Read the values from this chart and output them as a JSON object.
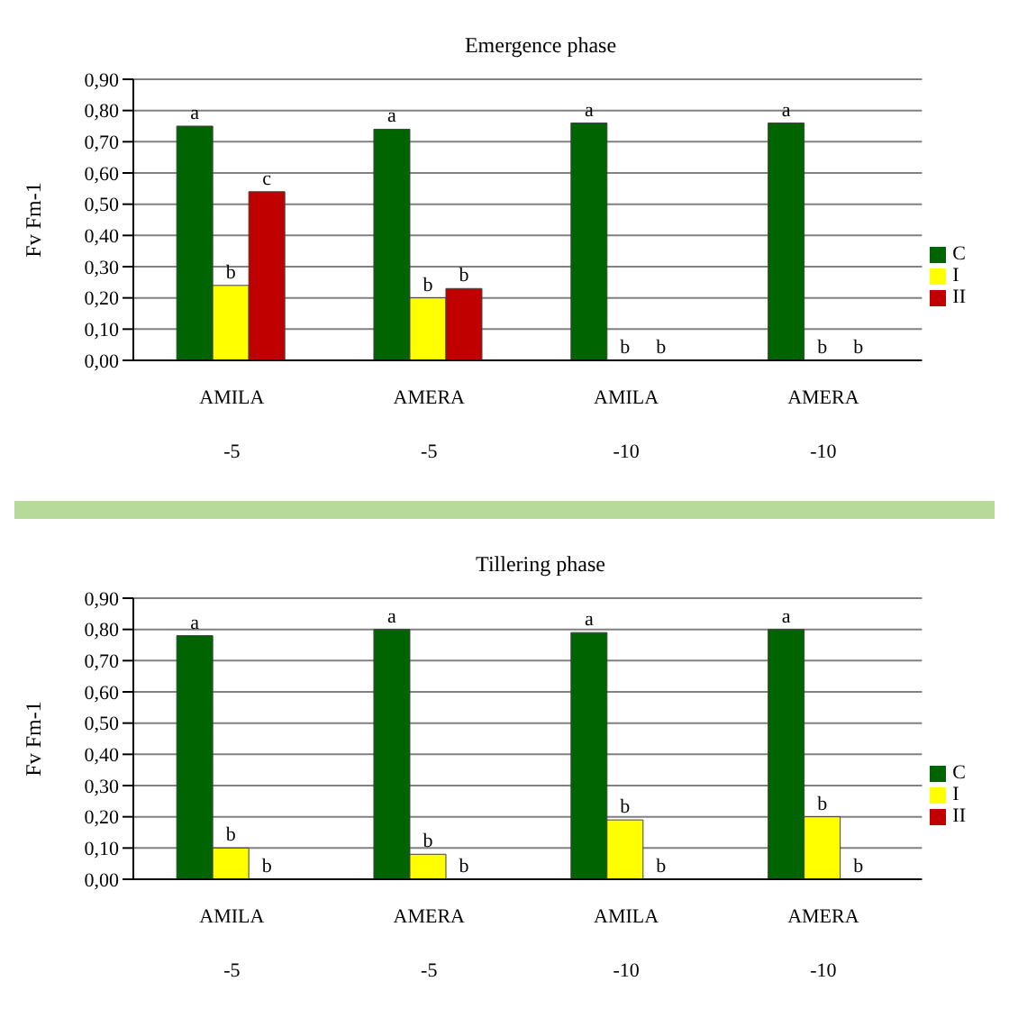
{
  "chart_data": [
    {
      "type": "bar",
      "title": "Emergence phase",
      "ylabel": "Fv Fm-1",
      "categories": [
        "AMILA\n-5",
        "AMERA\n-5",
        "AMILA\n-10",
        "AMERA\n-10"
      ],
      "series": [
        {
          "name": "C",
          "color": "#006400",
          "values": [
            0.75,
            0.74,
            0.76,
            0.76
          ],
          "value_labels": [
            "a",
            "a",
            "a",
            "a"
          ]
        },
        {
          "name": "I",
          "color": "#ffff00",
          "values": [
            0.24,
            0.2,
            0,
            0
          ],
          "value_labels": [
            "b",
            "b",
            "b",
            "b"
          ]
        },
        {
          "name": "II",
          "color": "#c00000",
          "values": [
            0.54,
            0.23,
            0,
            0
          ],
          "value_labels": [
            "c",
            "b",
            "b",
            "b"
          ]
        }
      ],
      "ylim": [
        0,
        0.9
      ],
      "yticks": [
        {
          "value": 0,
          "label": "0,00"
        },
        {
          "value": 0.1,
          "label": "0,10"
        },
        {
          "value": 0.2,
          "label": "0,20"
        },
        {
          "value": 0.3,
          "label": "0,30"
        },
        {
          "value": 0.4,
          "label": "0,40"
        },
        {
          "value": 0.5,
          "label": "0,50"
        },
        {
          "value": 0.6,
          "label": "0,60"
        },
        {
          "value": 0.7,
          "label": "0,70"
        },
        {
          "value": 0.8,
          "label": "0,80"
        },
        {
          "value": 0.9,
          "label": "0,90"
        }
      ],
      "grid": "y",
      "legend": "right"
    },
    {
      "type": "bar",
      "title": "Tillering phase",
      "ylabel": "Fv Fm-1",
      "categories": [
        "AMILA\n-5",
        "AMERA\n-5",
        "AMILA\n-10",
        "AMERA\n-10"
      ],
      "series": [
        {
          "name": "C",
          "color": "#006400",
          "values": [
            0.78,
            0.8,
            0.79,
            0.8
          ],
          "value_labels": [
            "a",
            "a",
            "a",
            "a"
          ]
        },
        {
          "name": "I",
          "color": "#ffff00",
          "values": [
            0.1,
            0.08,
            0.19,
            0.2
          ],
          "value_labels": [
            "b",
            "b",
            "b",
            "b"
          ]
        },
        {
          "name": "II",
          "color": "#c00000",
          "values": [
            0,
            0,
            0,
            0
          ],
          "value_labels": [
            "b",
            "b",
            "b",
            "b"
          ]
        }
      ],
      "ylim": [
        0,
        0.9
      ],
      "yticks": [
        {
          "value": 0,
          "label": "0,00"
        },
        {
          "value": 0.1,
          "label": "0,10"
        },
        {
          "value": 0.2,
          "label": "0,20"
        },
        {
          "value": 0.3,
          "label": "0,30"
        },
        {
          "value": 0.4,
          "label": "0,40"
        },
        {
          "value": 0.5,
          "label": "0,50"
        },
        {
          "value": 0.6,
          "label": "0,60"
        },
        {
          "value": 0.7,
          "label": "0,70"
        },
        {
          "value": 0.8,
          "label": "0,80"
        },
        {
          "value": 0.9,
          "label": "0,90"
        }
      ],
      "grid": "y",
      "legend": "right"
    }
  ]
}
